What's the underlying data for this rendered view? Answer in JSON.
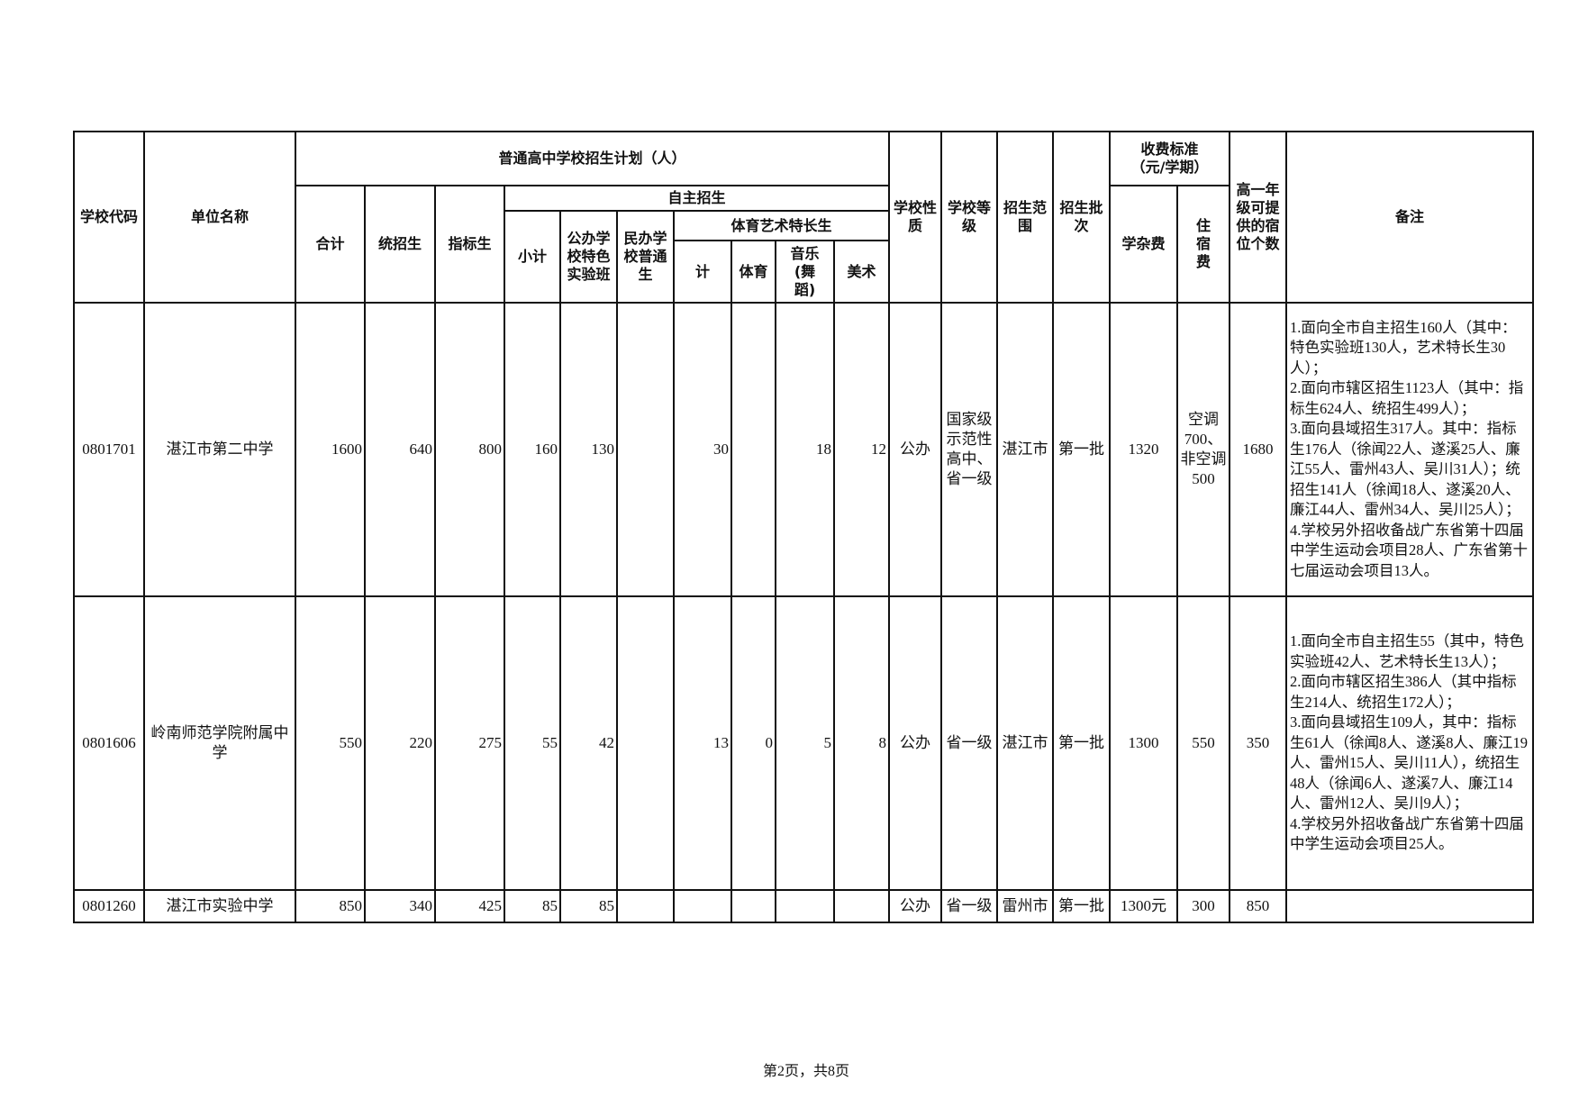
{
  "headers": {
    "school_code": "学校代码",
    "unit_name": "单位名称",
    "plan_group": "普通高中学校招生计划（人）",
    "total": "合计",
    "unified": "统招生",
    "quota": "指标生",
    "self_group": "自主招生",
    "subtotal": "小计",
    "public_special": "公办学校特色实验班",
    "private_regular": "民办学校普通生",
    "arts_sports_group": "体育艺术特长生",
    "as_total": "计",
    "sports": "体育",
    "music": "音乐(舞蹈)",
    "art": "美术",
    "nature": "学校性质",
    "level": "学校等级",
    "scope": "招生范围",
    "batch": "招生批次",
    "fee_group": "收费标准（元/学期）",
    "tuition": "学杂费",
    "lodging": "住宿费",
    "beds": "高一年级可提供的宿位个数",
    "remarks": "备注"
  },
  "rows": [
    {
      "code": "0801701",
      "name": "湛江市第二中学",
      "total": "1600",
      "unified": "640",
      "quota": "800",
      "subtotal": "160",
      "public_special": "130",
      "private_regular": "",
      "as_total": "30",
      "sports": "",
      "music": "18",
      "art": "12",
      "nature": "公办",
      "level": "国家级示范性高中、省一级",
      "scope": "湛江市",
      "batch": "第一批",
      "tuition": "1320",
      "lodging": "空调700、非空调500",
      "beds": "1680",
      "remarks": "1.面向全市自主招生160人（其中：特色实验班130人，艺术特长生30人）；\n2.面向市辖区招生1123人（其中：指标生624人、统招生499人）；\n3.面向县域招生317人。其中：指标生176人（徐闻22人、遂溪25人、廉江55人、雷州43人、吴川31人）；统招生141人（徐闻18人、遂溪20人、廉江44人、雷州34人、吴川25人）；\n4.学校另外招收备战广东省第十四届中学生运动会项目28人、广东省第十七届运动会项目13人。"
    },
    {
      "code": "0801606",
      "name": "岭南师范学院附属中学",
      "total": "550",
      "unified": "220",
      "quota": "275",
      "subtotal": "55",
      "public_special": "42",
      "private_regular": "",
      "as_total": "13",
      "sports": "0",
      "music": "5",
      "art": "8",
      "nature": "公办",
      "level": "省一级",
      "scope": "湛江市",
      "batch": "第一批",
      "tuition": "1300",
      "lodging": "550",
      "beds": "350",
      "remarks": "1.面向全市自主招生55（其中，特色实验班42人、艺术特长生13人）；\n2.面向市辖区招生386人（其中指标生214人、统招生172人）；\n3.面向县域招生109人，其中：指标生61人（徐闻8人、遂溪8人、廉江19人、雷州15人、吴川11人），统招生48人（徐闻6人、遂溪7人、廉江14人、雷州12人、吴川9人）；\n4.学校另外招收备战广东省第十四届中学生运动会项目25人。"
    },
    {
      "code": "0801260",
      "name": "湛江市实验中学",
      "total": "850",
      "unified": "340",
      "quota": "425",
      "subtotal": "85",
      "public_special": "85",
      "private_regular": "",
      "as_total": "",
      "sports": "",
      "music": "",
      "art": "",
      "nature": "公办",
      "level": "省一级",
      "scope": "雷州市",
      "batch": "第一批",
      "tuition": "1300元",
      "lodging": "300",
      "beds": "850",
      "remarks": ""
    }
  ],
  "footer": "第2页，共8页"
}
